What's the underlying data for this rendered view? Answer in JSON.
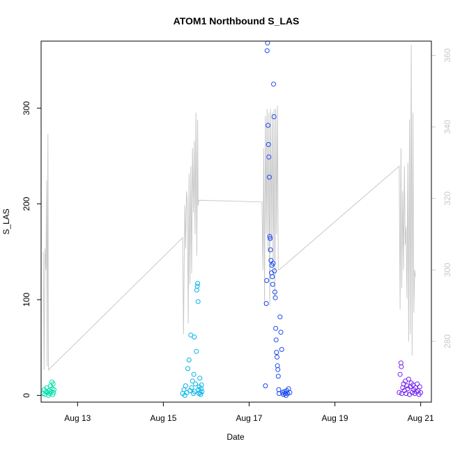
{
  "chart_data": {
    "type": "scatter",
    "title": "ATOM1 Northbound S_LAS",
    "xlabel": "Date",
    "ylabel": "S_LAS",
    "x_axis": {
      "unit": "days since Aug 12 00:00",
      "range": [
        0.15,
        9.25
      ],
      "ticks": [
        {
          "label": "Aug 13",
          "value": 1
        },
        {
          "label": "Aug 15",
          "value": 3
        },
        {
          "label": "Aug 17",
          "value": 5
        },
        {
          "label": "Aug 19",
          "value": 7
        },
        {
          "label": "Aug 21",
          "value": 9
        }
      ]
    },
    "y_left": {
      "range": [
        -7,
        370
      ],
      "ticks": [
        0,
        100,
        200,
        300
      ]
    },
    "y_right": {
      "range": [
        263,
        364
      ],
      "ticks": [
        280,
        300,
        320,
        340,
        360
      ],
      "color": "#c8c8c8"
    },
    "grid": false,
    "legend": "none",
    "series": [
      {
        "kind": "points",
        "color": "#00e0a8",
        "points": [
          [
            0.2,
            2
          ],
          [
            0.22,
            6
          ],
          [
            0.24,
            1
          ],
          [
            0.26,
            4
          ],
          [
            0.28,
            8
          ],
          [
            0.3,
            3
          ],
          [
            0.32,
            0
          ],
          [
            0.33,
            5
          ],
          [
            0.35,
            2
          ],
          [
            0.37,
            10
          ],
          [
            0.38,
            4
          ],
          [
            0.4,
            14
          ],
          [
            0.41,
            7
          ],
          [
            0.42,
            1
          ],
          [
            0.43,
            12
          ],
          [
            0.44,
            3
          ],
          [
            0.45,
            6
          ]
        ]
      },
      {
        "kind": "points",
        "color": "#00b4e8",
        "points": [
          [
            3.45,
            2
          ],
          [
            3.48,
            6
          ],
          [
            3.5,
            0
          ],
          [
            3.52,
            10
          ],
          [
            3.55,
            3
          ],
          [
            3.57,
            28
          ],
          [
            3.6,
            37
          ],
          [
            3.62,
            5
          ],
          [
            3.64,
            63
          ],
          [
            3.66,
            8
          ],
          [
            3.68,
            15
          ],
          [
            3.7,
            2
          ],
          [
            3.71,
            22
          ],
          [
            3.72,
            61
          ],
          [
            3.73,
            4
          ],
          [
            3.75,
            12
          ],
          [
            3.77,
            46
          ],
          [
            3.78,
            110
          ],
          [
            3.79,
            114
          ],
          [
            3.8,
            117
          ],
          [
            3.81,
            98
          ],
          [
            3.82,
            6
          ],
          [
            3.83,
            2
          ],
          [
            3.84,
            9
          ],
          [
            3.85,
            18
          ],
          [
            3.86,
            3
          ],
          [
            3.87,
            1
          ],
          [
            3.88,
            7
          ],
          [
            3.89,
            11
          ],
          [
            3.9,
            4
          ]
        ]
      },
      {
        "kind": "points",
        "color": "#1848f0",
        "points": [
          [
            5.38,
            10
          ],
          [
            5.4,
            96
          ],
          [
            5.41,
            120
          ],
          [
            5.42,
            360
          ],
          [
            5.43,
            368
          ],
          [
            5.44,
            282
          ],
          [
            5.45,
            262
          ],
          [
            5.46,
            249
          ],
          [
            5.47,
            228
          ],
          [
            5.48,
            166
          ],
          [
            5.49,
            164
          ],
          [
            5.5,
            152
          ],
          [
            5.51,
            141
          ],
          [
            5.52,
            128
          ],
          [
            5.53,
            136
          ],
          [
            5.54,
            124
          ],
          [
            5.55,
            116
          ],
          [
            5.56,
            138
          ],
          [
            5.57,
            325
          ],
          [
            5.58,
            291
          ],
          [
            5.59,
            130
          ],
          [
            5.6,
            108
          ],
          [
            5.61,
            102
          ],
          [
            5.62,
            70
          ],
          [
            5.63,
            58
          ],
          [
            5.64,
            45
          ],
          [
            5.65,
            40
          ],
          [
            5.66,
            31
          ],
          [
            5.67,
            27
          ],
          [
            5.68,
            20
          ],
          [
            5.69,
            6
          ],
          [
            5.7,
            2
          ],
          [
            5.72,
            82
          ],
          [
            5.74,
            66
          ],
          [
            5.76,
            48
          ],
          [
            5.78,
            3
          ],
          [
            5.8,
            1
          ],
          [
            5.82,
            4
          ],
          [
            5.84,
            2
          ],
          [
            5.86,
            0
          ],
          [
            5.88,
            5
          ],
          [
            5.9,
            2
          ],
          [
            5.92,
            7
          ],
          [
            5.95,
            3
          ]
        ]
      },
      {
        "kind": "points",
        "color": "#7020f0",
        "points": [
          [
            8.5,
            3
          ],
          [
            8.52,
            22
          ],
          [
            8.54,
            34
          ],
          [
            8.55,
            30
          ],
          [
            8.56,
            2
          ],
          [
            8.58,
            8
          ],
          [
            8.6,
            12
          ],
          [
            8.62,
            5
          ],
          [
            8.64,
            15
          ],
          [
            8.66,
            2
          ],
          [
            8.68,
            10
          ],
          [
            8.7,
            7
          ],
          [
            8.72,
            17
          ],
          [
            8.74,
            1
          ],
          [
            8.76,
            9
          ],
          [
            8.78,
            13
          ],
          [
            8.8,
            3
          ],
          [
            8.82,
            11
          ],
          [
            8.84,
            6
          ],
          [
            8.86,
            2
          ],
          [
            8.88,
            8
          ],
          [
            8.9,
            4
          ],
          [
            8.92,
            12
          ],
          [
            8.94,
            5
          ],
          [
            8.96,
            1
          ],
          [
            8.98,
            9
          ],
          [
            9.0,
            3
          ]
        ]
      },
      {
        "kind": "line",
        "axis": "right",
        "color": "#c8c8c8",
        "points": [
          [
            0.2,
            305
          ],
          [
            0.22,
            272
          ],
          [
            0.24,
            306
          ],
          [
            0.26,
            300
          ],
          [
            0.28,
            325
          ],
          [
            0.29,
            273
          ],
          [
            0.31,
            338
          ],
          [
            0.32,
            272
          ],
          [
            3.45,
            309
          ],
          [
            3.47,
            282
          ],
          [
            3.5,
            318
          ],
          [
            3.52,
            306
          ],
          [
            3.54,
            322
          ],
          [
            3.56,
            319
          ],
          [
            3.58,
            285
          ],
          [
            3.6,
            327
          ],
          [
            3.62,
            296
          ],
          [
            3.64,
            329
          ],
          [
            3.66,
            299
          ],
          [
            3.68,
            334
          ],
          [
            3.7,
            316
          ],
          [
            3.72,
            336
          ],
          [
            3.74,
            310
          ],
          [
            3.76,
            344
          ],
          [
            3.78,
            304
          ],
          [
            3.8,
            342
          ],
          [
            3.81,
            318
          ],
          [
            3.83,
            319.5
          ],
          [
            5.3,
            319
          ],
          [
            5.32,
            300
          ],
          [
            5.34,
            334
          ],
          [
            5.36,
            290
          ],
          [
            5.38,
            343
          ],
          [
            5.4,
            310
          ],
          [
            5.42,
            345
          ],
          [
            5.44,
            305
          ],
          [
            5.46,
            344
          ],
          [
            5.48,
            290
          ],
          [
            5.5,
            345
          ],
          [
            5.52,
            308
          ],
          [
            5.54,
            344
          ],
          [
            5.56,
            300
          ],
          [
            5.58,
            345
          ],
          [
            5.6,
            292
          ],
          [
            5.62,
            345
          ],
          [
            5.64,
            310
          ],
          [
            5.66,
            346
          ],
          [
            5.68,
            300
          ],
          [
            5.7,
            300
          ],
          [
            8.5,
            329
          ],
          [
            8.52,
            289
          ],
          [
            8.54,
            334
          ],
          [
            8.56,
            295
          ],
          [
            8.58,
            322
          ],
          [
            8.6,
            300
          ],
          [
            8.62,
            329
          ],
          [
            8.64,
            307
          ],
          [
            8.66,
            312
          ],
          [
            8.68,
            292
          ],
          [
            8.7,
            330
          ],
          [
            8.72,
            280
          ],
          [
            8.74,
            342
          ],
          [
            8.76,
            282
          ],
          [
            8.78,
            363
          ],
          [
            8.8,
            276
          ],
          [
            8.82,
            344
          ],
          [
            8.84,
            288
          ],
          [
            8.86,
            300
          ],
          [
            8.88,
            298
          ]
        ]
      }
    ]
  }
}
